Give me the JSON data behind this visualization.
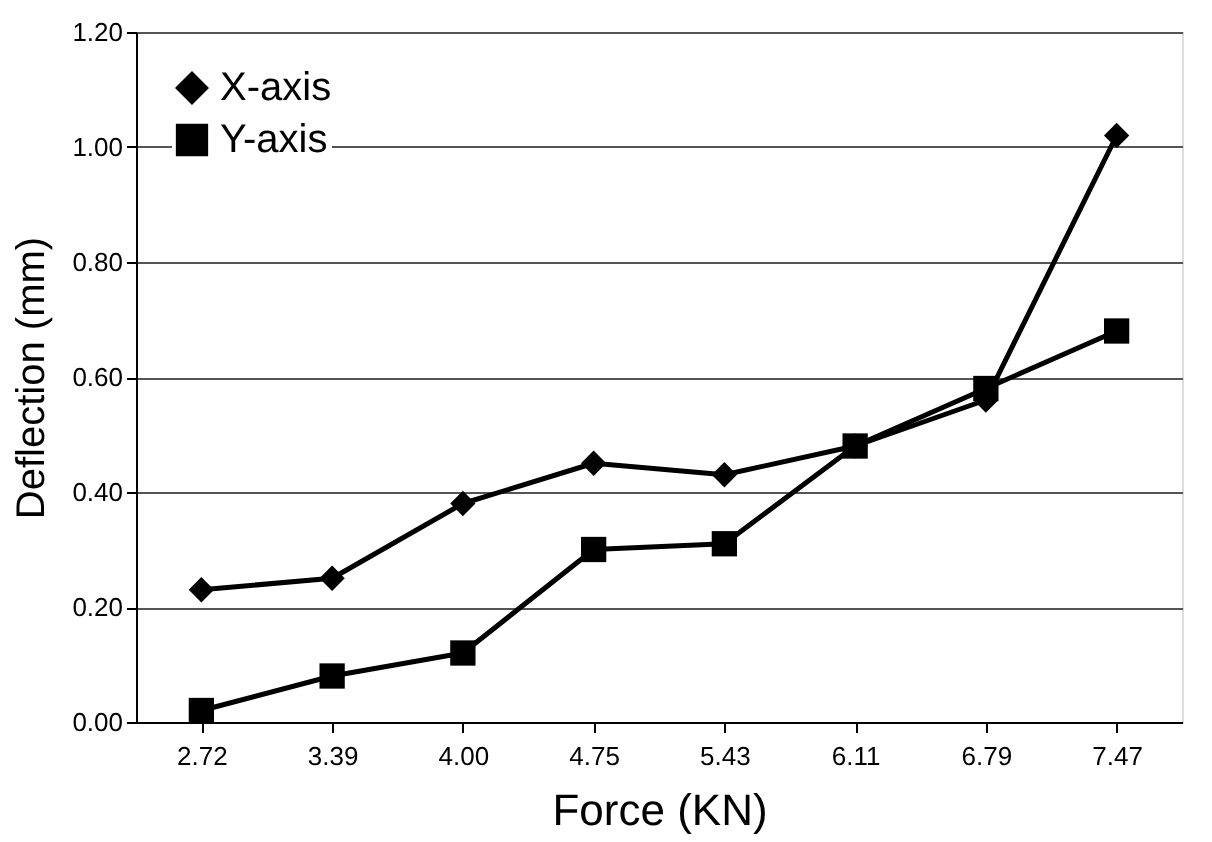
{
  "chart_data": {
    "type": "line",
    "xlabel": "Force (KN)",
    "ylabel": "Deflection (mm)",
    "categories": [
      "2.72",
      "3.39",
      "4.00",
      "4.75",
      "5.43",
      "6.11",
      "6.79",
      "7.47"
    ],
    "series": [
      {
        "name": "X-axis",
        "color": "#000000",
        "marker": "diamond",
        "values": [
          0.23,
          0.25,
          0.38,
          0.45,
          0.43,
          0.48,
          0.56,
          1.02
        ]
      },
      {
        "name": "Y-axis",
        "color": "#000000",
        "marker": "square",
        "values": [
          0.02,
          0.08,
          0.12,
          0.3,
          0.31,
          0.48,
          0.58,
          0.68
        ]
      }
    ],
    "ylim": [
      0,
      1.2
    ],
    "yticks": [
      {
        "value": 0,
        "label": "0.00"
      },
      {
        "value": 0.2,
        "label": "0.20"
      },
      {
        "value": 0.4,
        "label": "0.40"
      },
      {
        "value": 0.6,
        "label": "0.60"
      },
      {
        "value": 0.8,
        "label": "0.80"
      },
      {
        "value": 1.0,
        "label": "1.00"
      },
      {
        "value": 1.2,
        "label": "1.20"
      }
    ],
    "grid": "y",
    "legend": "top left",
    "line_style": "solid"
  }
}
